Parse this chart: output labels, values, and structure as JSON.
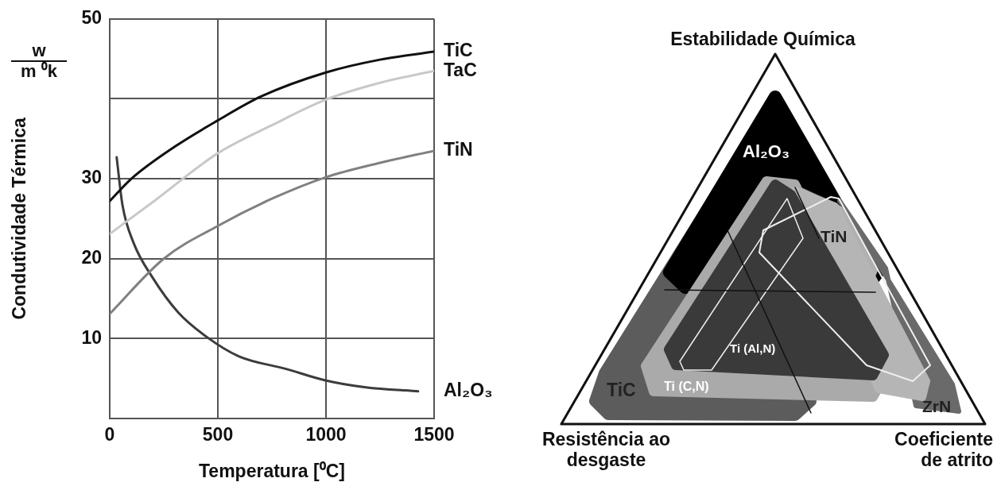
{
  "chart_data": [
    {
      "type": "line",
      "xlabel": "Temperatura [⁰C]",
      "ylabel": "Condutividade Térmica",
      "annotations": [
        "w",
        "m ⁰k"
      ],
      "xlim": [
        0,
        1500
      ],
      "xticks": [
        0,
        500,
        1000,
        1500
      ],
      "ylim": [
        0,
        50
      ],
      "yticks": [
        10,
        20,
        30,
        {
          "value": 40,
          "label": null
        },
        50
      ],
      "grid": true,
      "legend": false,
      "marker": "none",
      "line_style": "solid",
      "series": [
        {
          "name": "TiC",
          "color": "#111111",
          "x": [
            0,
            100,
            300,
            500,
            700,
            1000,
            1250,
            1500
          ],
          "values": [
            27.2,
            30.0,
            34.0,
            37.3,
            40.3,
            43.3,
            44.9,
            45.9
          ]
        },
        {
          "name": "TaC",
          "color": "#c8c8c8",
          "x": [
            0,
            200,
            500,
            750,
            1000,
            1250,
            1500
          ],
          "values": [
            23.1,
            27.1,
            33.2,
            36.7,
            39.9,
            42.0,
            43.5
          ]
        },
        {
          "name": "TiN",
          "color": "#808080",
          "x": [
            0,
            250,
            500,
            750,
            1000,
            1250,
            1500
          ],
          "values": [
            13.1,
            20.0,
            24.1,
            27.5,
            30.2,
            32.0,
            33.5
          ]
        },
        {
          "name": "Al₂O₃",
          "color": "#3c3c3c",
          "x": [
            32,
            59,
            110,
            199,
            316,
            449,
            596,
            816,
            993,
            1184,
            1426
          ],
          "values": [
            32.7,
            26.7,
            22.0,
            17.6,
            13.3,
            10.2,
            7.8,
            6.2,
            4.8,
            3.9,
            3.4
          ]
        }
      ]
    },
    {
      "type": "other",
      "title": "Estabilidade Química",
      "annotations": [
        "Resistência ao desgaste",
        "Coeficiente de atrito",
        "Al₂O₃",
        "TiN",
        "Ti (Al,N)",
        "TiC",
        "Ti (C,N)",
        "ZrN"
      ]
    }
  ]
}
